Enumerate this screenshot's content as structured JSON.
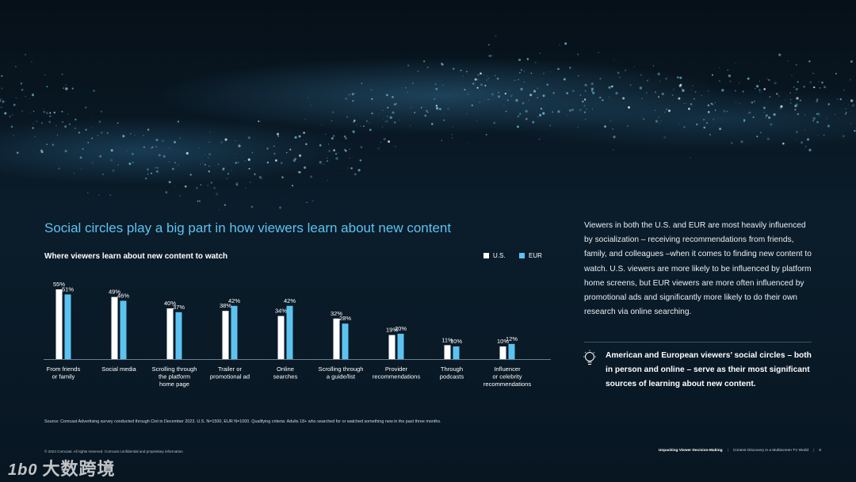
{
  "headline": "Social circles play a big part in how viewers learn about new content",
  "colors": {
    "us": "#ffffff",
    "eur": "#5cc3f0",
    "headline": "#5cc3f0",
    "background": "#071521"
  },
  "chart_data": {
    "type": "bar",
    "title": "Where viewers learn about new content to watch",
    "xlabel": "",
    "ylabel": "",
    "ylim": [
      0,
      60
    ],
    "grid": false,
    "legend_position": "top-right",
    "value_suffix": "%",
    "categories": [
      [
        "From friends",
        "or family"
      ],
      [
        "Social media"
      ],
      [
        "Scrolling through",
        "the platform",
        "home page"
      ],
      [
        "Trailer or",
        "promotional ad"
      ],
      [
        "Online",
        "searches"
      ],
      [
        "Scrolling through",
        "a guide/list"
      ],
      [
        "Provider",
        "recommendations"
      ],
      [
        "Through",
        "podcasts"
      ],
      [
        "Influencer",
        "or celebrity",
        "recommendations"
      ]
    ],
    "series": [
      {
        "name": "U.S.",
        "color": "#ffffff",
        "values": [
          55,
          49,
          40,
          38,
          34,
          32,
          19,
          11,
          10
        ]
      },
      {
        "name": "EUR",
        "color": "#5cc3f0",
        "values": [
          51,
          46,
          37,
          42,
          42,
          28,
          20,
          10,
          12
        ]
      }
    ]
  },
  "body_text": "Viewers in both the U.S. and EUR are most heavily influenced by socialization – receiving recommendations from friends, family, and colleagues –when it comes to finding new content to watch. U.S. viewers are more likely to be influenced by platform home screens, but EUR viewers are more often influenced by promotional ads and significantly more likely to do their own research via online searching.",
  "callout": {
    "icon": "lightbulb-icon",
    "text": "American and European viewers’ social circles – both in person and online – serve as their most significant sources of learning about new content."
  },
  "source": "Source: Comcast Advertising survey conducted through Cint in December 2023. U.S. N=1500, EUR N=1000. Qualifying criteria: Adults 18+ who searched for or watched something new in the past three months.",
  "footer": {
    "copyright": "© 2024 Comcast. All rights reserved. Comcast confidential and proprietary information",
    "report_title": "Unpacking Viewer Decision-Making",
    "report_subtitle": "Content Discovery in a Multiscreen TV World",
    "page_number": "6"
  },
  "watermark": {
    "logo": "1b0",
    "text": "大数跨境"
  }
}
